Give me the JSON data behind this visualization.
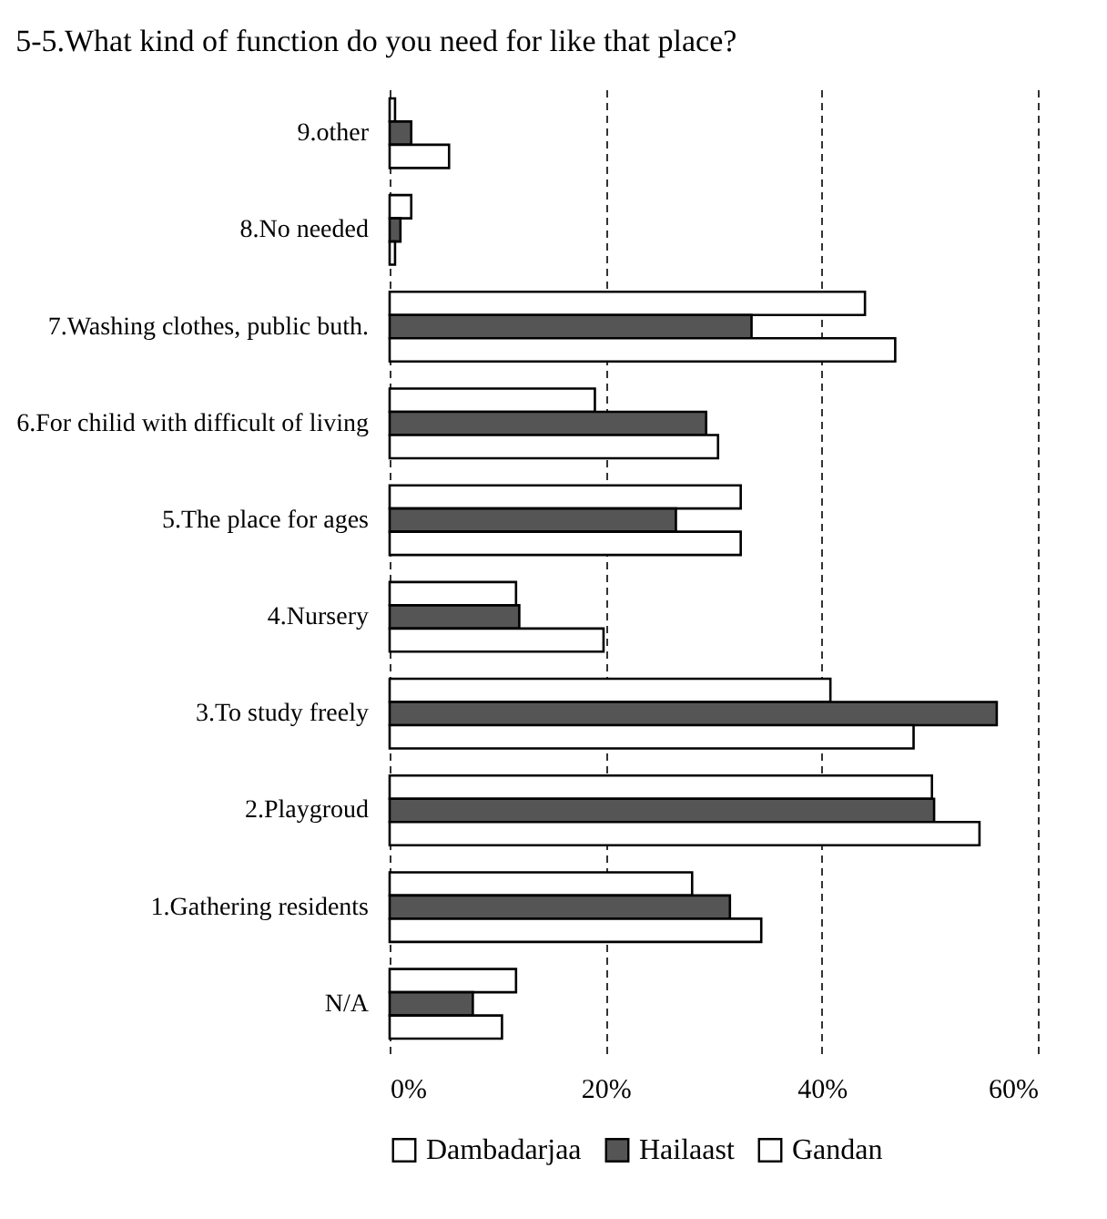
{
  "chart_data": {
    "type": "bar",
    "orientation": "horizontal",
    "title": "5-5.What kind of function do you need for like that place?",
    "categories": [
      "9.other",
      "8.No needed",
      "7.Washing clothes, public buth.",
      "6.For chilid with difficult of living",
      "5.The place for ages",
      "4.Nursery",
      "3.To study freely",
      "2.Playgroud",
      "1.Gathering residents",
      "N/A"
    ],
    "series": [
      {
        "name": "Dambadarjaa",
        "color": "#ffffff",
        "values": [
          0.5,
          2,
          44,
          19,
          32.5,
          11.7,
          40.8,
          50.2,
          28,
          11.7
        ]
      },
      {
        "name": "Hailaast",
        "color": "#555555",
        "values": [
          2,
          1,
          33.5,
          29.3,
          26.5,
          12,
          56.2,
          50.4,
          31.5,
          7.7
        ]
      },
      {
        "name": "Gandan",
        "color": "#ffffff",
        "values": [
          5.5,
          0.5,
          46.8,
          30.4,
          32.5,
          19.8,
          48.5,
          54.6,
          34.4,
          10.4
        ]
      }
    ],
    "xlim": [
      0,
      60
    ],
    "xticks": [
      {
        "value": 0,
        "label": "0%"
      },
      {
        "value": 20,
        "label": "20%"
      },
      {
        "value": 40,
        "label": "40%"
      },
      {
        "value": 60,
        "label": "60%"
      }
    ],
    "grid": "x",
    "legend": "bottom"
  }
}
